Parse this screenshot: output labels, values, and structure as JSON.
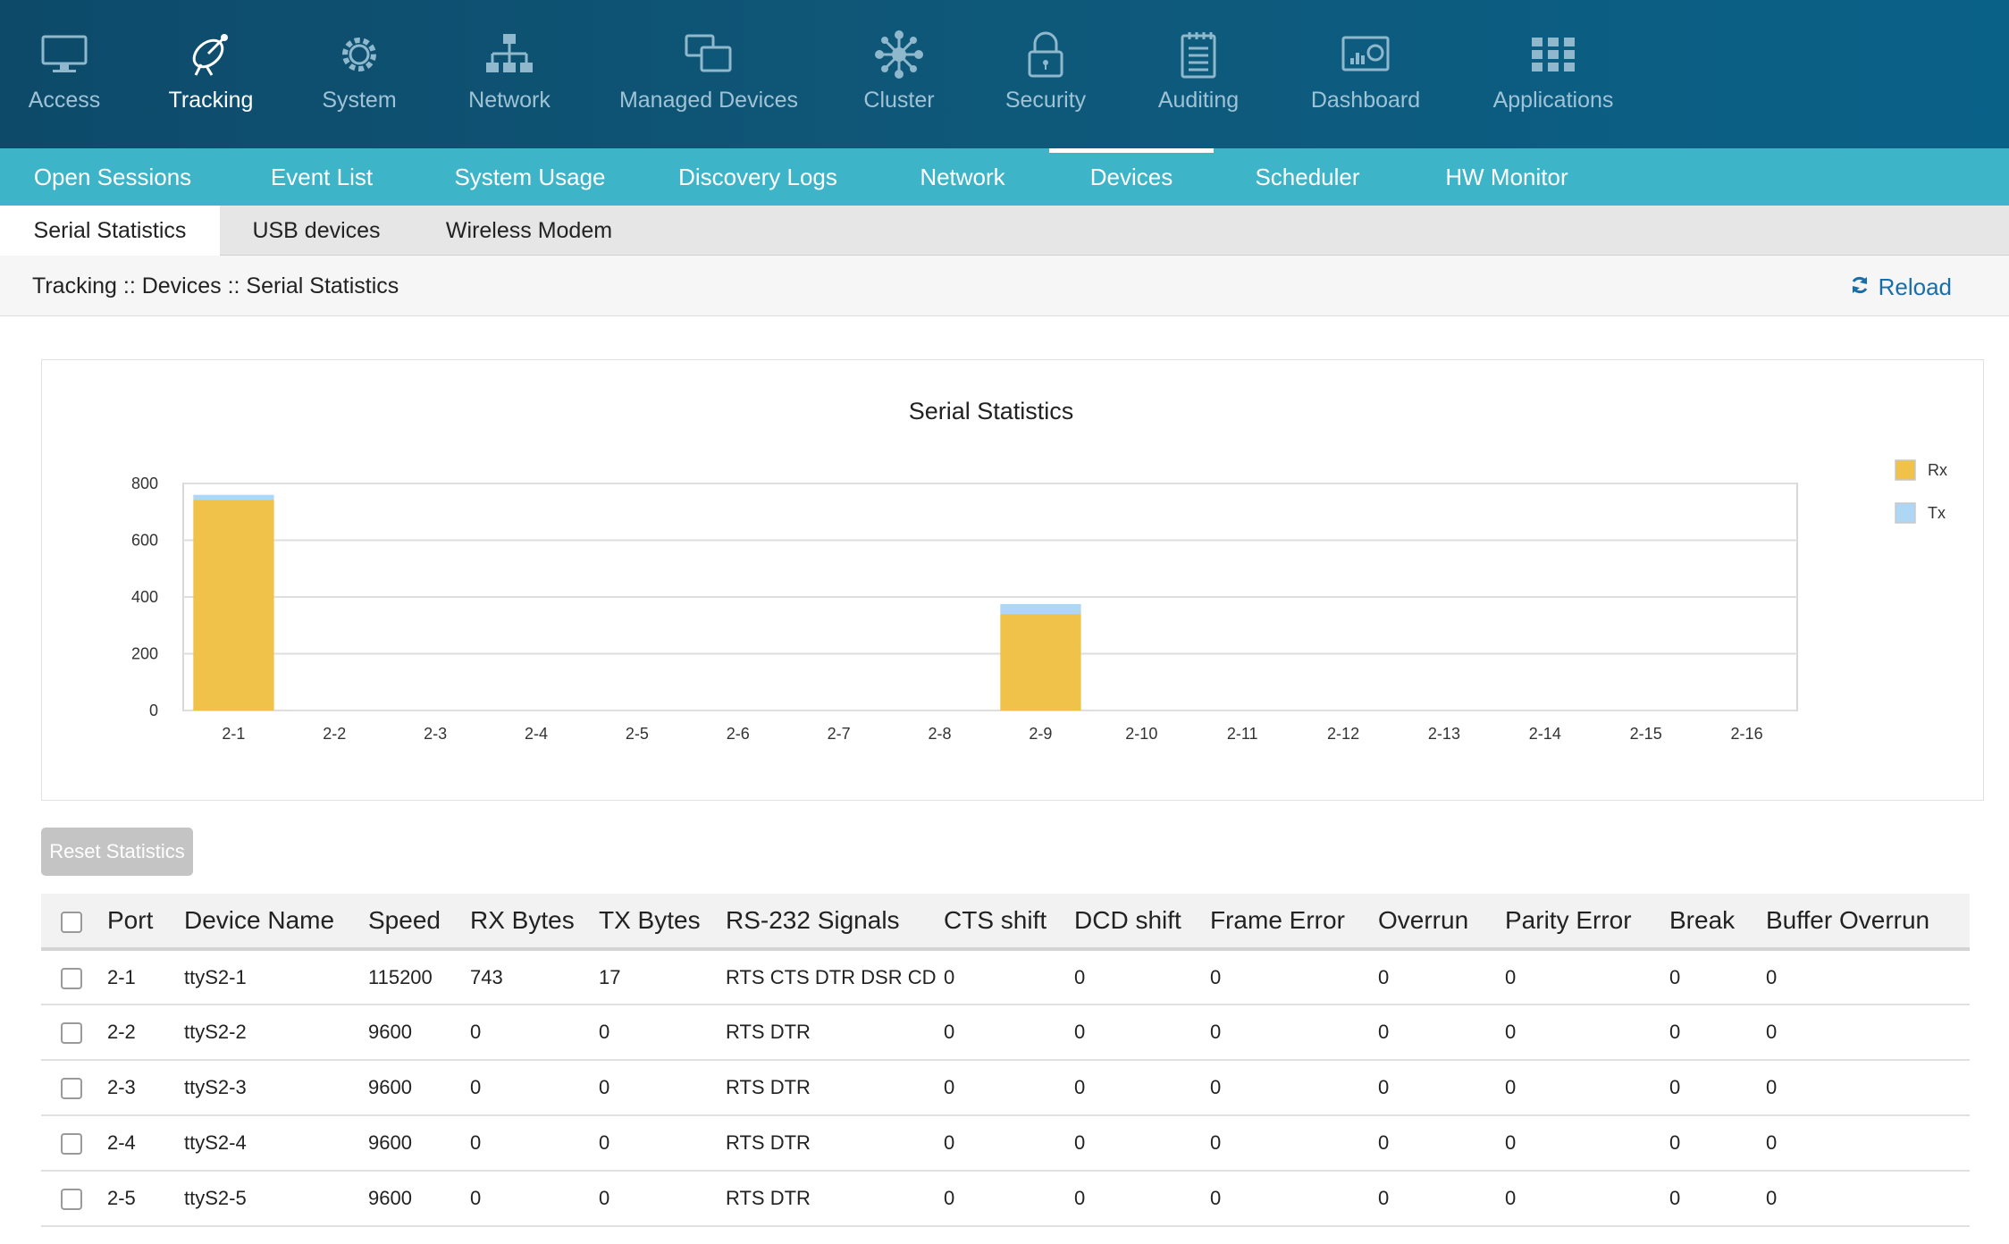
{
  "top_nav": [
    {
      "label": "Access",
      "icon": "monitor-icon"
    },
    {
      "label": "Tracking",
      "icon": "satellite-dish-icon",
      "active": true
    },
    {
      "label": "System",
      "icon": "gear-icon"
    },
    {
      "label": "Network",
      "icon": "network-tree-icon"
    },
    {
      "label": "Managed Devices",
      "icon": "devices-icon"
    },
    {
      "label": "Cluster",
      "icon": "cluster-icon"
    },
    {
      "label": "Security",
      "icon": "lock-icon"
    },
    {
      "label": "Auditing",
      "icon": "notepad-icon"
    },
    {
      "label": "Dashboard",
      "icon": "dashboard-icon"
    },
    {
      "label": "Applications",
      "icon": "grid-icon"
    }
  ],
  "sub_nav": [
    {
      "label": "Open Sessions"
    },
    {
      "label": "Event List"
    },
    {
      "label": "System Usage"
    },
    {
      "label": "Discovery Logs"
    },
    {
      "label": "Network"
    },
    {
      "label": "Devices",
      "active": true
    },
    {
      "label": "Scheduler"
    },
    {
      "label": "HW Monitor"
    }
  ],
  "device_tabs": [
    {
      "label": "Serial Statistics",
      "active": true
    },
    {
      "label": "USB devices"
    },
    {
      "label": "Wireless Modem"
    }
  ],
  "breadcrumb": "Tracking :: Devices :: Serial Statistics",
  "reload_label": "Reload",
  "reset_label": "Reset Statistics",
  "colors": {
    "rx": "#f0c24a",
    "tx": "#aed6f5",
    "accent": "#3db4c8",
    "link": "#1a6ea8"
  },
  "chart_data": {
    "type": "bar",
    "stacked": true,
    "title": "Serial Statistics",
    "categories": [
      "2-1",
      "2-2",
      "2-3",
      "2-4",
      "2-5",
      "2-6",
      "2-7",
      "2-8",
      "2-9",
      "2-10",
      "2-11",
      "2-12",
      "2-13",
      "2-14",
      "2-15",
      "2-16"
    ],
    "series": [
      {
        "name": "Rx",
        "values": [
          743,
          0,
          0,
          0,
          0,
          0,
          0,
          0,
          340,
          0,
          0,
          0,
          0,
          0,
          0,
          0
        ]
      },
      {
        "name": "Tx",
        "values": [
          17,
          0,
          0,
          0,
          0,
          0,
          0,
          0,
          35,
          0,
          0,
          0,
          0,
          0,
          0,
          0
        ]
      }
    ],
    "yticks": [
      "0",
      "200",
      "400",
      "600",
      "800"
    ],
    "ylim": [
      0,
      800
    ],
    "grid": true,
    "legend": "right"
  },
  "table": {
    "headers": [
      "Port",
      "Device Name",
      "Speed",
      "RX Bytes",
      "TX Bytes",
      "RS-232 Signals",
      "CTS shift",
      "DCD shift",
      "Frame Error",
      "Overrun",
      "Parity Error",
      "Break",
      "Buffer Overrun"
    ],
    "rows": [
      [
        "2-1",
        "ttyS2-1",
        "115200",
        "743",
        "17",
        "RTS CTS DTR DSR CD",
        "0",
        "0",
        "0",
        "0",
        "0",
        "0",
        "0"
      ],
      [
        "2-2",
        "ttyS2-2",
        "9600",
        "0",
        "0",
        "RTS DTR",
        "0",
        "0",
        "0",
        "0",
        "0",
        "0",
        "0"
      ],
      [
        "2-3",
        "ttyS2-3",
        "9600",
        "0",
        "0",
        "RTS DTR",
        "0",
        "0",
        "0",
        "0",
        "0",
        "0",
        "0"
      ],
      [
        "2-4",
        "ttyS2-4",
        "9600",
        "0",
        "0",
        "RTS DTR",
        "0",
        "0",
        "0",
        "0",
        "0",
        "0",
        "0"
      ],
      [
        "2-5",
        "ttyS2-5",
        "9600",
        "0",
        "0",
        "RTS DTR",
        "0",
        "0",
        "0",
        "0",
        "0",
        "0",
        "0"
      ]
    ]
  }
}
